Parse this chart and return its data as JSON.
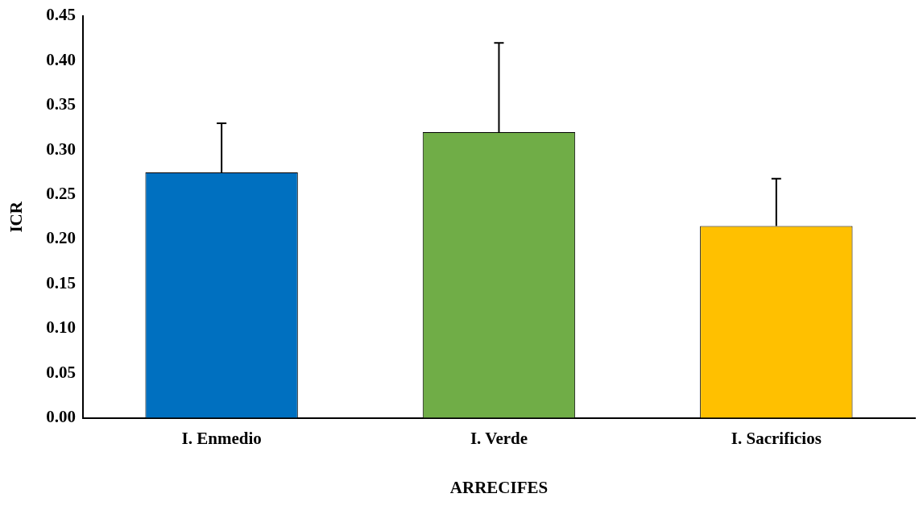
{
  "chart_data": {
    "type": "bar",
    "xlabel": "ARRECIFES",
    "ylabel": "ICR",
    "categories": [
      "I. Enmedio",
      "I. Verde",
      "I. Sacrificios"
    ],
    "values": [
      0.275,
      0.32,
      0.215
    ],
    "colors": [
      "#0070c0",
      "#70ad47",
      "#ffc000"
    ],
    "errors": [
      [
        0.275,
        0.33
      ],
      [
        0.32,
        0.42
      ],
      [
        0.215,
        0.268
      ]
    ],
    "ylim": [
      0,
      0.45
    ],
    "yticks": [
      {
        "value": 0,
        "label": "0.00"
      },
      {
        "value": 0.05,
        "label": "0.05"
      },
      {
        "value": 0.1,
        "label": "0.10"
      },
      {
        "value": 0.15,
        "label": "0.15"
      },
      {
        "value": 0.2,
        "label": "0.20"
      },
      {
        "value": 0.25,
        "label": "0.25"
      },
      {
        "value": 0.3,
        "label": "0.30"
      },
      {
        "value": 0.35,
        "label": "0.35"
      },
      {
        "value": 0.4,
        "label": "0.40"
      },
      {
        "value": 0.45,
        "label": "0.45"
      }
    ],
    "grid": false,
    "legend": false
  }
}
